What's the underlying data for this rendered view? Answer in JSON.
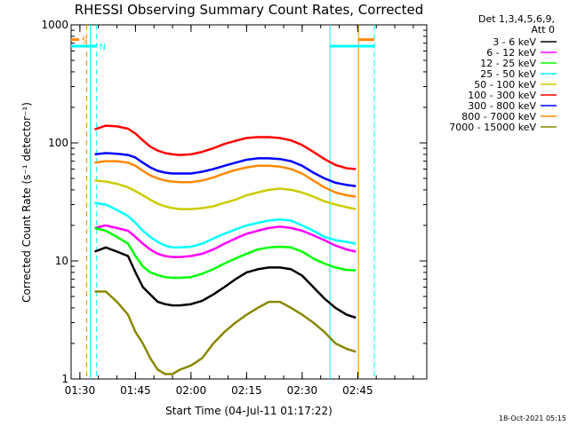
{
  "title": "RHESSI Observing Summary Count Rates, Corrected",
  "timestamp": "18-Oct-2021 05:15",
  "chart_data": {
    "type": "line",
    "title": "RHESSI Observing Summary Count Rates, Corrected",
    "xlabel": "Start Time (04-Jul-11 01:17:22)",
    "ylabel": "Corrected Count Rate (s⁻¹ detector⁻¹)",
    "yscale": "log",
    "ylim": [
      1,
      1000
    ],
    "xlim_minutes": [
      -17.37,
      78.63
    ],
    "x_ticks": [
      {
        "label": "01:30",
        "minutes": -15
      },
      {
        "label": "01:45",
        "minutes": 0
      },
      {
        "label": "02:00",
        "minutes": 15
      },
      {
        "label": "02:15",
        "minutes": 30
      },
      {
        "label": "02:30",
        "minutes": 45
      },
      {
        "label": "02:45",
        "minutes": 60
      }
    ],
    "y_ticks": [
      {
        "label": "1",
        "value": 1
      },
      {
        "label": "10",
        "value": 10
      },
      {
        "label": "100",
        "value": 100
      },
      {
        "label": "1000",
        "value": 1000
      }
    ],
    "legend_header": [
      "Det 1,3,4,5,6,9,",
      "Att 0"
    ],
    "legend_placement": "right",
    "series": [
      {
        "name": "3 - 6 keV",
        "color": "#000000",
        "x": [
          -11,
          -8,
          -5,
          -2,
          0,
          2,
          4,
          6,
          8,
          10,
          12,
          15,
          18,
          21,
          24,
          27,
          30,
          33,
          36,
          39,
          42,
          45,
          48,
          51,
          54,
          57,
          59.5
        ],
        "y": [
          12,
          13,
          12,
          11,
          8,
          6,
          5.2,
          4.5,
          4.3,
          4.2,
          4.2,
          4.3,
          4.6,
          5.2,
          6,
          7,
          8,
          8.5,
          8.8,
          8.8,
          8.5,
          7.5,
          6,
          4.8,
          4,
          3.5,
          3.3
        ]
      },
      {
        "name": "6 - 12 keV",
        "color": "#ff00ff",
        "x": [
          -11,
          -8,
          -5,
          -2,
          0,
          2,
          4,
          6,
          8,
          10,
          12,
          15,
          18,
          21,
          24,
          27,
          30,
          33,
          36,
          39,
          42,
          45,
          48,
          51,
          54,
          57,
          59.5
        ],
        "y": [
          19,
          20,
          19,
          18,
          16,
          14,
          12.5,
          11.5,
          11,
          10.8,
          10.8,
          11,
          11.5,
          12.5,
          14,
          15.5,
          17,
          18,
          19,
          19.5,
          19,
          18,
          16.5,
          15,
          13.5,
          12.5,
          12
        ]
      },
      {
        "name": "12 - 25 keV",
        "color": "#00ff00",
        "x": [
          -11,
          -8,
          -5,
          -2,
          0,
          2,
          4,
          6,
          8,
          10,
          12,
          15,
          18,
          21,
          24,
          27,
          30,
          33,
          36,
          39,
          42,
          45,
          48,
          51,
          54,
          57,
          59.5
        ],
        "y": [
          19,
          18,
          16,
          14,
          11,
          9,
          8,
          7.6,
          7.3,
          7.2,
          7.2,
          7.3,
          7.8,
          8.5,
          9.5,
          10.5,
          11.5,
          12.5,
          13,
          13.2,
          13,
          12,
          10.5,
          9.5,
          8.8,
          8.4,
          8.3
        ]
      },
      {
        "name": "25 - 50 keV",
        "color": "#00ffff",
        "x": [
          -11,
          -8,
          -5,
          -2,
          0,
          2,
          4,
          6,
          8,
          10,
          12,
          15,
          18,
          21,
          24,
          27,
          30,
          33,
          36,
          39,
          42,
          45,
          48,
          51,
          54,
          57,
          59.5
        ],
        "y": [
          31,
          30,
          27,
          24,
          21,
          18,
          16,
          14.5,
          13.5,
          13,
          13,
          13.2,
          14,
          15.5,
          17,
          18.5,
          20,
          21,
          22,
          22.5,
          22,
          20,
          18,
          16,
          15,
          14.5,
          14
        ]
      },
      {
        "name": "50 - 100 keV",
        "color": "#cccc00",
        "x": [
          -11,
          -8,
          -5,
          -2,
          0,
          2,
          4,
          6,
          8,
          10,
          12,
          15,
          18,
          21,
          24,
          27,
          30,
          33,
          36,
          39,
          42,
          45,
          48,
          51,
          54,
          57,
          59.5
        ],
        "y": [
          48,
          47,
          45,
          42,
          39,
          36,
          33,
          30.5,
          29,
          28,
          27.5,
          27.5,
          28,
          29,
          31,
          33,
          36,
          38,
          40,
          41,
          40,
          38,
          35,
          32,
          30,
          28.5,
          27.5
        ]
      },
      {
        "name": "100 - 300 keV",
        "color": "#ff0000",
        "x": [
          -11,
          -8,
          -5,
          -2,
          0,
          2,
          4,
          6,
          8,
          10,
          12,
          15,
          18,
          21,
          24,
          27,
          30,
          33,
          36,
          39,
          42,
          45,
          48,
          51,
          54,
          57,
          59.5
        ],
        "y": [
          130,
          140,
          138,
          132,
          120,
          105,
          93,
          86,
          82,
          80,
          79,
          80,
          84,
          90,
          98,
          104,
          110,
          112,
          112,
          110,
          105,
          96,
          84,
          73,
          65,
          61,
          60
        ]
      },
      {
        "name": "300 - 800 keV",
        "color": "#0000ff",
        "x": [
          -11,
          -8,
          -5,
          -2,
          0,
          2,
          4,
          6,
          8,
          10,
          12,
          15,
          18,
          21,
          24,
          27,
          30,
          33,
          36,
          39,
          42,
          45,
          48,
          51,
          54,
          57,
          59.5
        ],
        "y": [
          80,
          82,
          81,
          79,
          75,
          68,
          62,
          58,
          56,
          55,
          55,
          55,
          57,
          60,
          64,
          68,
          72,
          74,
          74,
          73,
          70,
          64,
          56,
          50,
          46,
          44,
          43
        ]
      },
      {
        "name": "800 - 7000 keV",
        "color": "#ff8800",
        "x": [
          -11,
          -8,
          -5,
          -2,
          0,
          2,
          4,
          6,
          8,
          10,
          12,
          15,
          18,
          21,
          24,
          27,
          30,
          33,
          36,
          39,
          42,
          45,
          48,
          51,
          54,
          57,
          59.5
        ],
        "y": [
          68,
          70,
          70,
          68,
          64,
          58,
          53,
          50,
          48,
          47,
          46.5,
          46.5,
          48,
          51,
          55,
          59,
          62,
          64,
          64,
          63,
          60,
          55,
          48,
          42,
          38,
          36,
          35
        ]
      },
      {
        "name": "7000 - 15000 keV",
        "color": "#888800",
        "x": [
          -11,
          -8,
          -5,
          -2,
          0,
          2,
          4,
          6,
          8,
          10,
          12,
          15,
          18,
          21,
          24,
          27,
          30,
          33,
          36,
          39,
          42,
          45,
          48,
          51,
          54,
          57,
          59.5
        ],
        "y": [
          5.5,
          5.5,
          4.5,
          3.5,
          2.5,
          2,
          1.5,
          1.2,
          1.1,
          1.1,
          1.2,
          1.3,
          1.5,
          2,
          2.5,
          3,
          3.5,
          4,
          4.5,
          4.5,
          4,
          3.5,
          3,
          2.5,
          2,
          1.8,
          1.7
        ]
      }
    ],
    "flags": [
      {
        "label": "S",
        "color": "#ff8800",
        "level": 750,
        "segments": [
          [
            -17.37,
            -15.2
          ],
          [
            60.2,
            64.5
          ]
        ],
        "vlines_dashed": [
          -13.2
        ],
        "vlines_solid": [
          60.2
        ]
      },
      {
        "label": "N",
        "color": "#00ffff",
        "level": 660,
        "segments": [
          [
            -17.37,
            -10.5
          ],
          [
            52.5,
            64.5
          ]
        ],
        "vlines_dashed": [
          -10.5,
          64.5
        ],
        "vlines_solid": [
          -12.2,
          52.5
        ]
      }
    ],
    "grid": false
  }
}
